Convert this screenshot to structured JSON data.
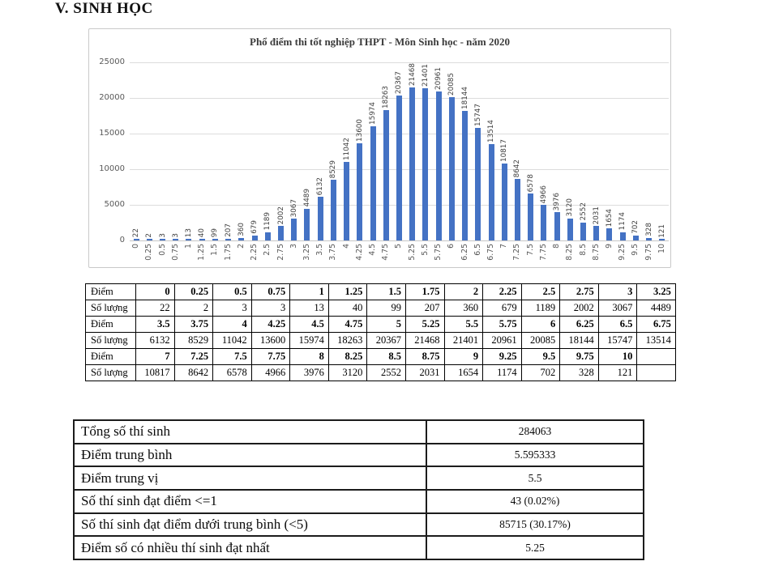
{
  "document": {
    "section_title": "V. SINH HỌC"
  },
  "chart_data": {
    "type": "bar",
    "title": "Phổ điểm thi tốt nghiệp THPT - Môn Sinh học - năm 2020",
    "xlabel": "",
    "ylabel": "",
    "ylim": [
      0,
      25000
    ],
    "ytick_interval": 5000,
    "yticks": [
      "0",
      "5000",
      "10000",
      "15000",
      "20000",
      "25000"
    ],
    "grid": true,
    "legend_position": "none",
    "bar_color": "#4472C4",
    "gridline_color": "#DCDCDC",
    "axis_label_color": "#595959",
    "value_label_style": "rotated-90-above-bar",
    "categories": [
      "0",
      "0.25",
      "0.5",
      "0.75",
      "1",
      "1.25",
      "1.5",
      "1.75",
      "2",
      "2.25",
      "2.5",
      "2.75",
      "3",
      "3.25",
      "3.5",
      "3.75",
      "4",
      "4.25",
      "4.5",
      "4.75",
      "5",
      "5.25",
      "5.5",
      "5.75",
      "6",
      "6.25",
      "6.5",
      "6.75",
      "7",
      "7.25",
      "7.5",
      "7.75",
      "8",
      "8.25",
      "8.5",
      "8.75",
      "9",
      "9.25",
      "9.5",
      "9.75",
      "10"
    ],
    "values": [
      22,
      2,
      3,
      3,
      13,
      40,
      99,
      207,
      360,
      679,
      1189,
      2002,
      3067,
      4489,
      6132,
      8529,
      11042,
      13600,
      15974,
      18263,
      20367,
      21468,
      21401,
      20961,
      20085,
      18144,
      15747,
      13514,
      10817,
      8642,
      6578,
      4966,
      3976,
      3120,
      2552,
      2031,
      1654,
      1174,
      702,
      328,
      121
    ]
  },
  "score_table": {
    "score_label": "Điểm",
    "count_label": "Số lượng",
    "columns_per_row": 14,
    "chunks": [
      {
        "scores": [
          "0",
          "0.25",
          "0.5",
          "0.75",
          "1",
          "1.25",
          "1.5",
          "1.75",
          "2",
          "2.25",
          "2.5",
          "2.75",
          "3",
          "3.25"
        ],
        "counts": [
          "22",
          "2",
          "3",
          "3",
          "13",
          "40",
          "99",
          "207",
          "360",
          "679",
          "1189",
          "2002",
          "3067",
          "4489"
        ]
      },
      {
        "scores": [
          "3.5",
          "3.75",
          "4",
          "4.25",
          "4.5",
          "4.75",
          "5",
          "5.25",
          "5.5",
          "5.75",
          "6",
          "6.25",
          "6.5",
          "6.75"
        ],
        "counts": [
          "6132",
          "8529",
          "11042",
          "13600",
          "15974",
          "18263",
          "20367",
          "21468",
          "21401",
          "20961",
          "20085",
          "18144",
          "15747",
          "13514"
        ]
      },
      {
        "scores": [
          "7",
          "7.25",
          "7.5",
          "7.75",
          "8",
          "8.25",
          "8.5",
          "8.75",
          "9",
          "9.25",
          "9.5",
          "9.75",
          "10",
          ""
        ],
        "counts": [
          "10817",
          "8642",
          "6578",
          "4966",
          "3976",
          "3120",
          "2552",
          "2031",
          "1654",
          "1174",
          "702",
          "328",
          "121",
          ""
        ]
      }
    ]
  },
  "summary_table": {
    "rows": [
      {
        "label": "Tổng số thí sinh",
        "value": "284063"
      },
      {
        "label": "Điểm trung bình",
        "value": "5.595333"
      },
      {
        "label": "Điểm trung vị",
        "value": "5.5"
      },
      {
        "label": "Số thí sinh đạt điểm <=1",
        "value": "43 (0.02%)"
      },
      {
        "label": "Số thí sinh đạt điểm dưới trung bình (<5)",
        "value": "85715 (30.17%)"
      },
      {
        "label": "Điểm số có nhiều thí sinh đạt nhất",
        "value": "5.25"
      }
    ]
  }
}
